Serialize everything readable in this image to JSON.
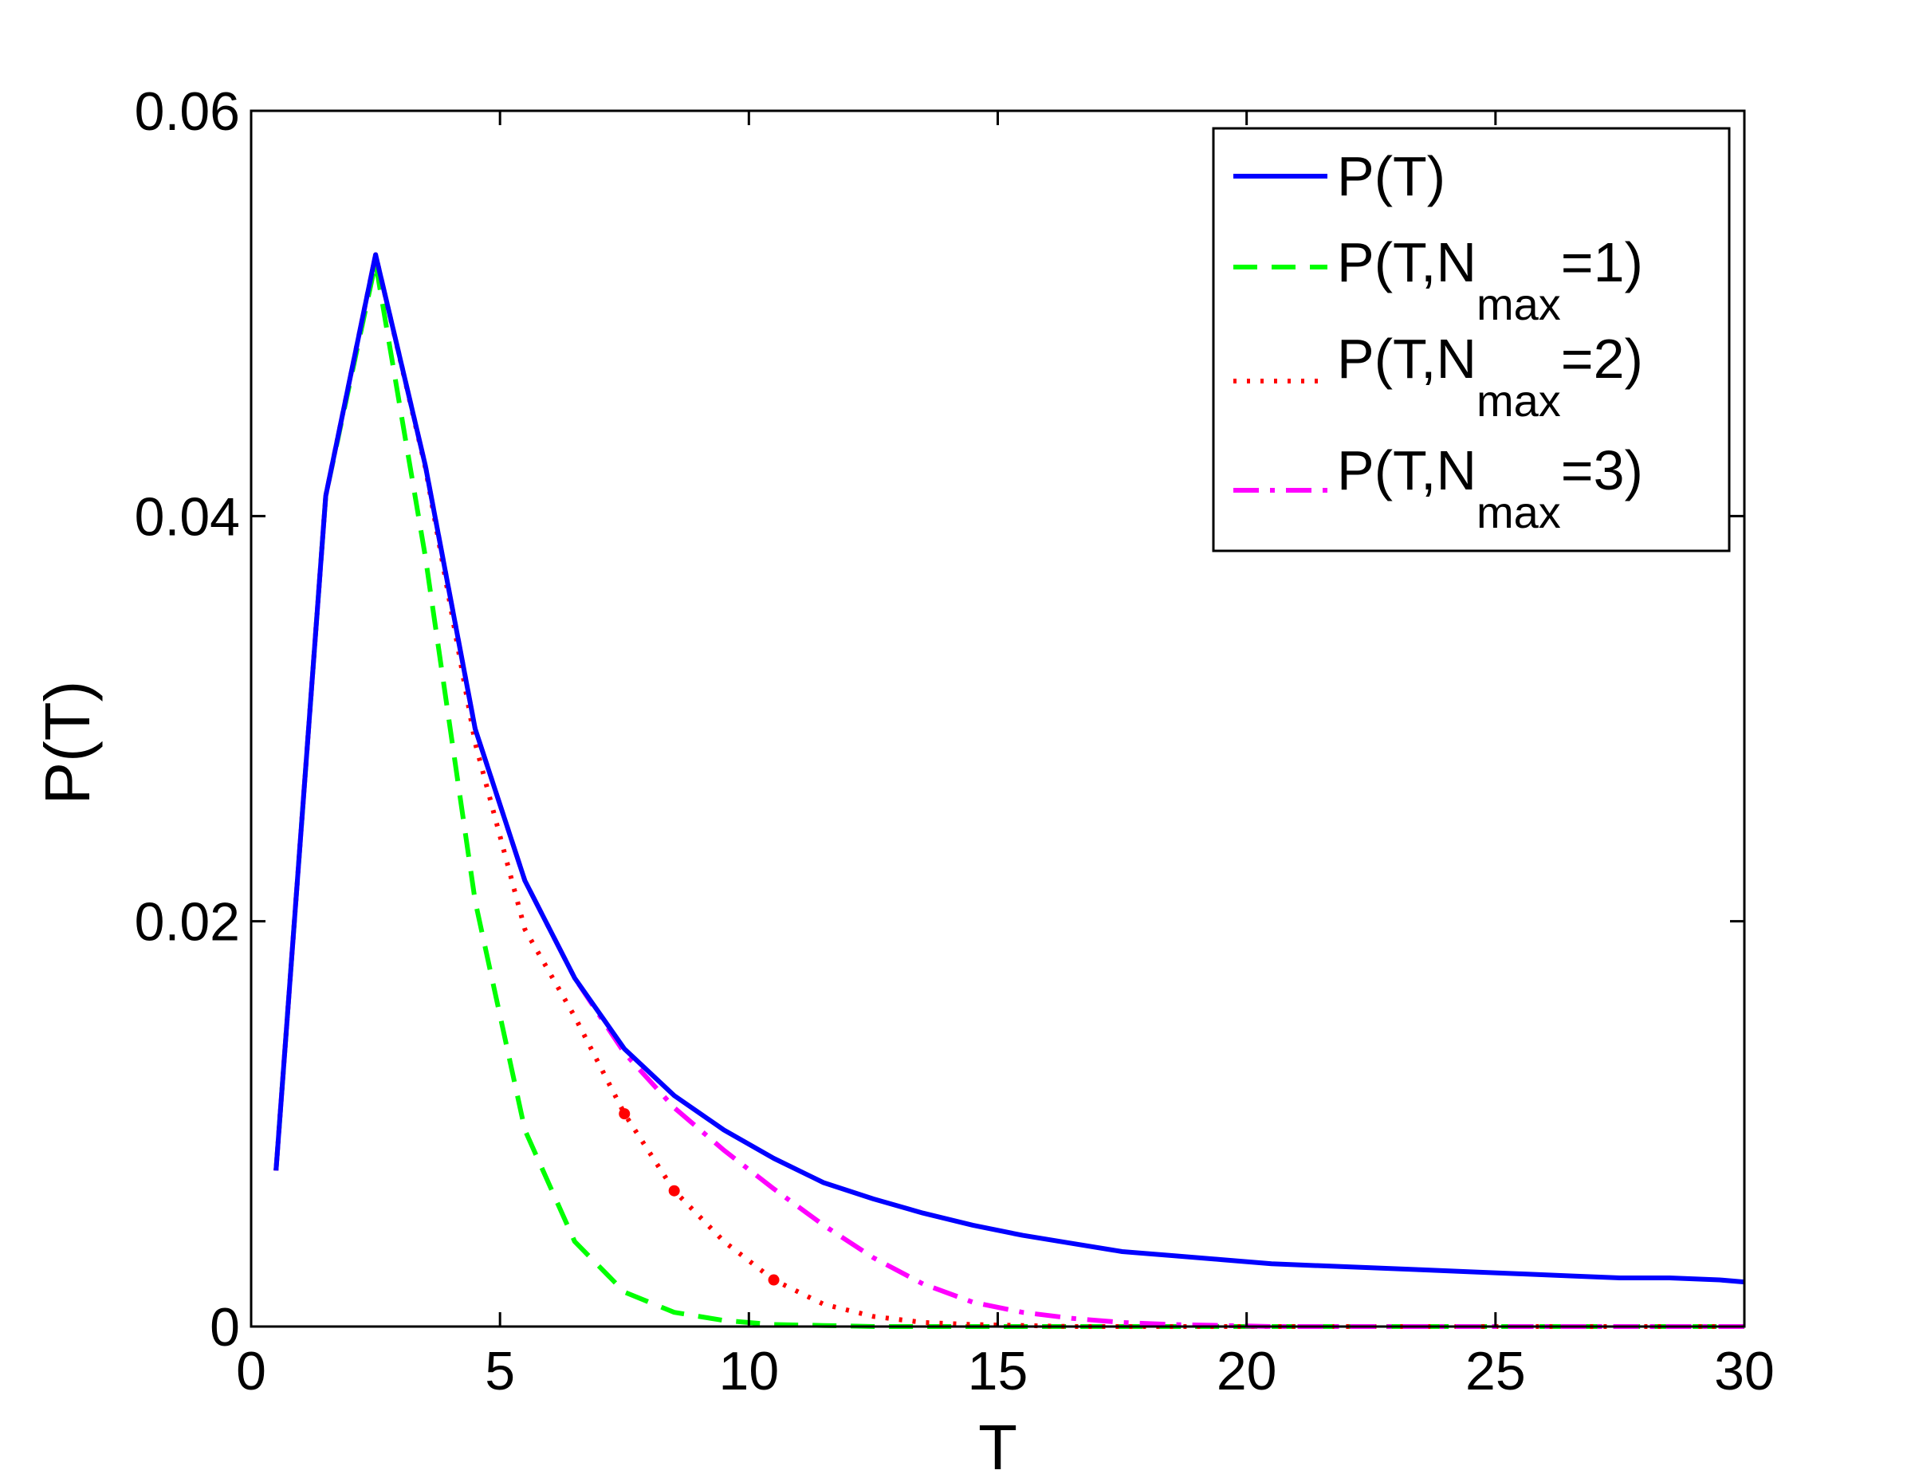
{
  "chart_data": {
    "type": "line",
    "title": "",
    "xlabel": "T",
    "ylabel": "P(T)",
    "xlim": [
      0,
      30
    ],
    "ylim": [
      0,
      0.06
    ],
    "xticks": [
      "0",
      "5",
      "10",
      "15",
      "20",
      "25",
      "30"
    ],
    "yticks": [
      "0",
      "0.02",
      "0.04",
      "0.06"
    ],
    "grid": false,
    "legend_position": "top-right",
    "x": [
      0.5,
      1.5,
      2.5,
      3.5,
      4.5,
      5.5,
      6.5,
      7.5,
      8.5,
      9.5,
      10.5,
      11.5,
      12.5,
      13.5,
      14.5,
      15.5,
      16.5,
      17.5,
      18.5,
      19.5,
      20.5,
      21.5,
      22.5,
      23.5,
      24.5,
      25.5,
      26.5,
      27.5,
      28.5,
      29.5,
      30
    ],
    "series": [
      {
        "name": "P(T)",
        "legend_prefix": "P(T)",
        "legend_sub": "",
        "legend_suffix": "",
        "color": "#0000ff",
        "dash": "solid",
        "values": [
          0.0077,
          0.041,
          0.0529,
          0.0425,
          0.0295,
          0.022,
          0.0172,
          0.0137,
          0.0114,
          0.0097,
          0.0083,
          0.0071,
          0.0063,
          0.0056,
          0.005,
          0.0045,
          0.0041,
          0.0037,
          0.0035,
          0.0033,
          0.0031,
          0.003,
          0.0029,
          0.0028,
          0.0027,
          0.0026,
          0.0025,
          0.0024,
          0.0024,
          0.0023,
          0.0022
        ]
      },
      {
        "name": "P(T,Nmax=1)",
        "legend_prefix": "P(T,N",
        "legend_sub": "max",
        "legend_suffix": "=1)",
        "color": "#00ff00",
        "dash": "dashed",
        "values": [
          0.0077,
          0.041,
          0.0525,
          0.038,
          0.021,
          0.0097,
          0.0042,
          0.0017,
          0.0007,
          0.0003,
          0.0001,
          5e-05,
          0,
          0,
          0,
          0,
          0,
          0,
          0,
          0,
          0,
          0,
          0,
          0,
          0,
          0,
          0,
          0,
          0,
          0,
          0
        ]
      },
      {
        "name": "P(T,Nmax=2)",
        "legend_prefix": "P(T,N",
        "legend_sub": "max",
        "legend_suffix": "=2)",
        "color": "#ff0000",
        "dash": "dotted",
        "values": [
          0.0077,
          0.041,
          0.0529,
          0.0424,
          0.0288,
          0.0196,
          0.0153,
          0.0105,
          0.0067,
          0.0042,
          0.0023,
          0.0011,
          0.0005,
          0.0002,
          0.0001,
          5e-05,
          0,
          0,
          0,
          0,
          0,
          0,
          0,
          0,
          0,
          0,
          0,
          0,
          0,
          0,
          0
        ]
      },
      {
        "name": "P(T,Nmax=3)",
        "legend_prefix": "P(T,N",
        "legend_sub": "max",
        "legend_suffix": "=3)",
        "color": "#ff00ff",
        "dash": "dashdot",
        "values": [
          0.0077,
          0.041,
          0.0529,
          0.0425,
          0.0295,
          0.022,
          0.0172,
          0.0135,
          0.0108,
          0.0087,
          0.0068,
          0.005,
          0.0034,
          0.0021,
          0.0012,
          0.0007,
          0.0004,
          0.0002,
          0.0001,
          5e-05,
          0,
          0,
          0,
          0,
          0,
          0,
          0,
          0,
          0,
          0,
          0
        ]
      }
    ],
    "markers": [
      {
        "series": "P(T,Nmax=2)",
        "x": 7.5,
        "y": 0.0105
      },
      {
        "series": "P(T,Nmax=2)",
        "x": 8.5,
        "y": 0.0067
      },
      {
        "series": "P(T,Nmax=2)",
        "x": 10.5,
        "y": 0.0023
      }
    ]
  }
}
